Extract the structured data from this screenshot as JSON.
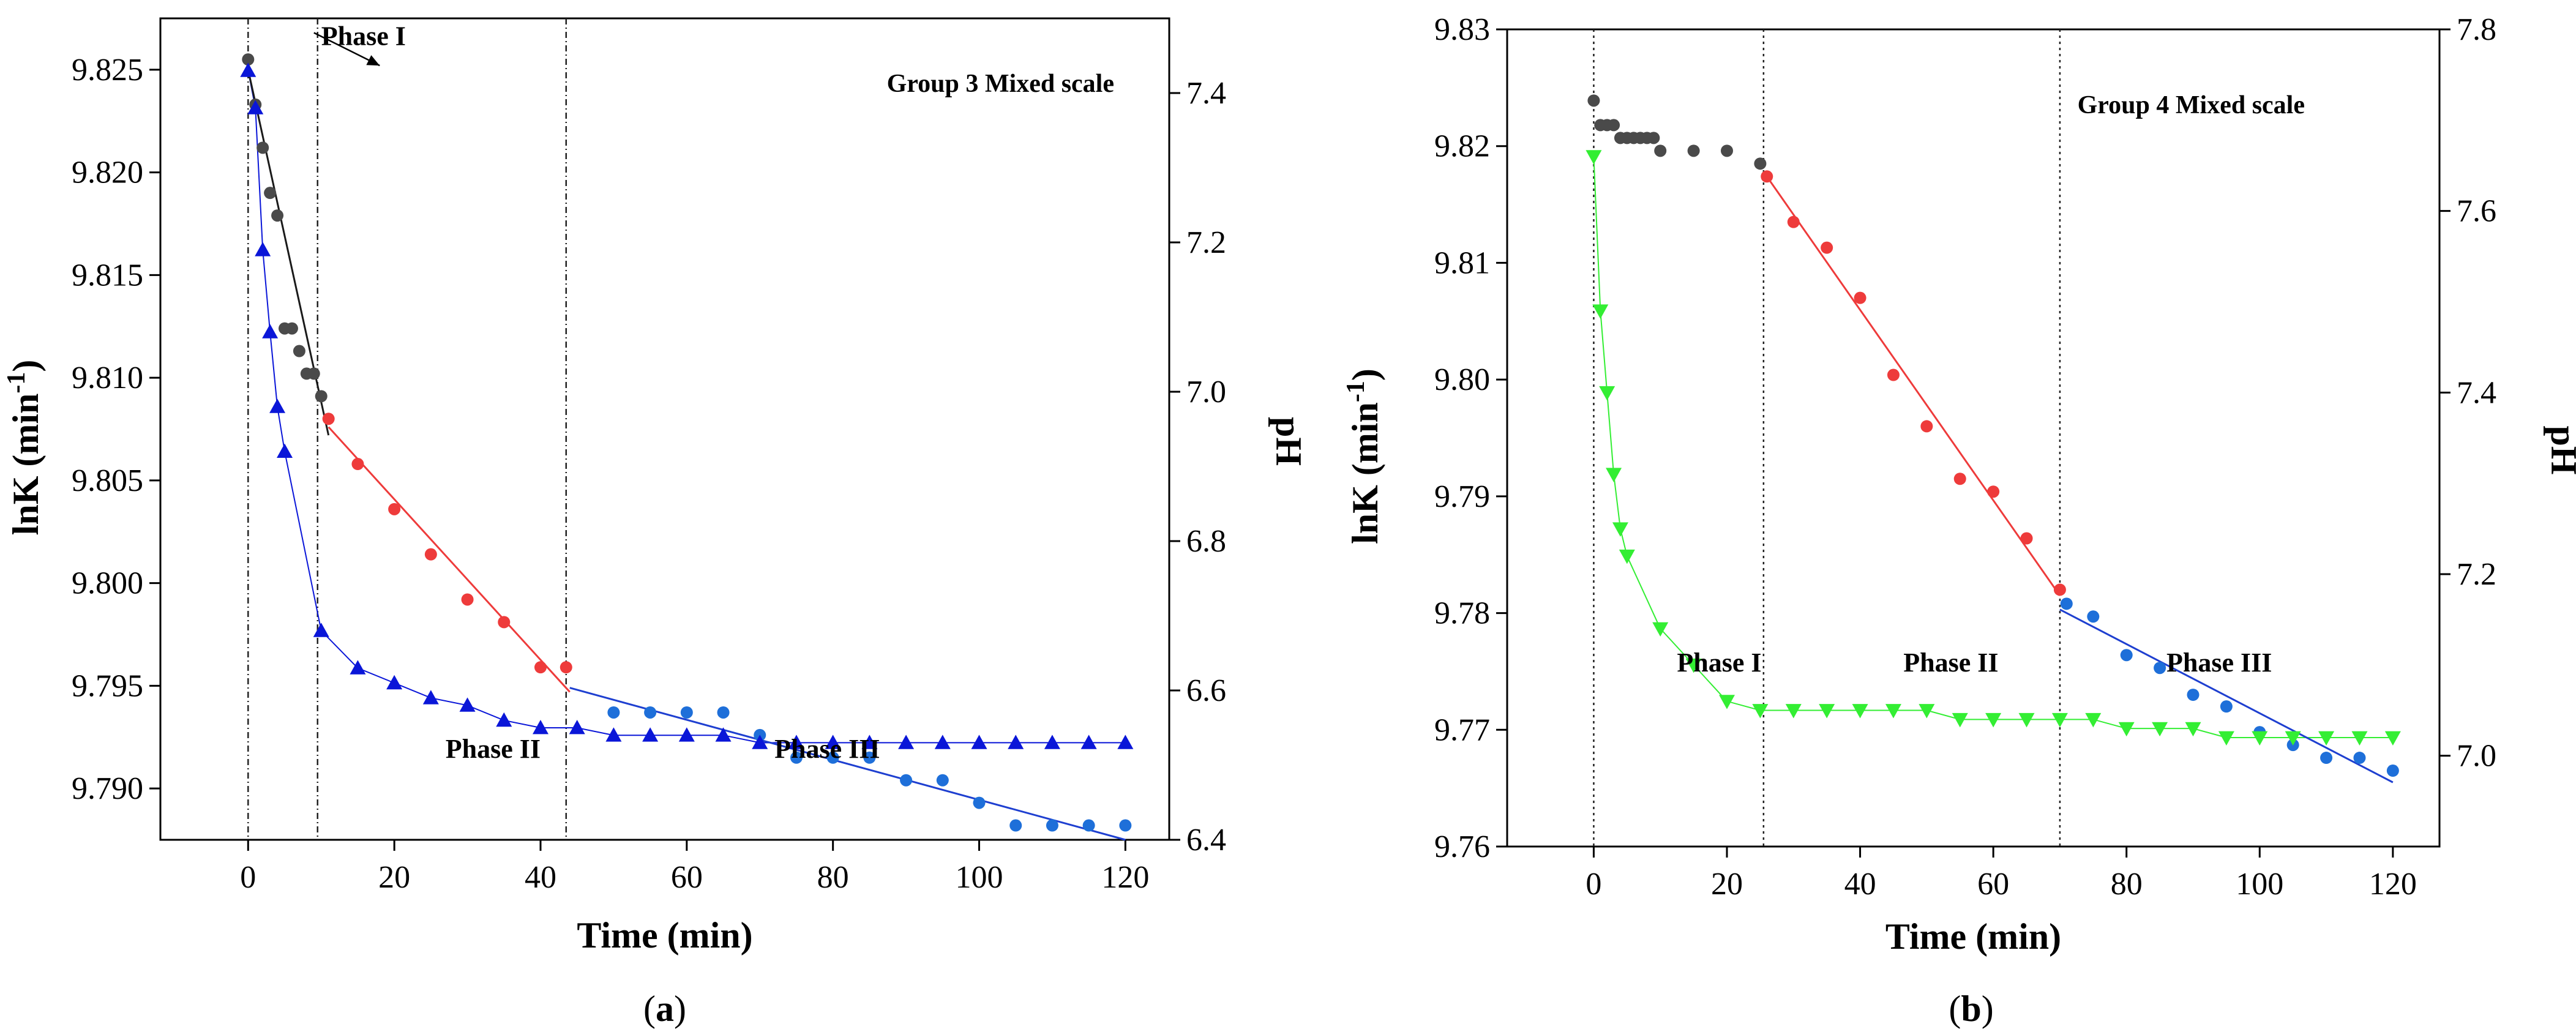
{
  "chart_data": [
    {
      "type": "scatter",
      "panel_label": "(a)",
      "panel_label_letter": "a",
      "title": "Group 3 Mixed scale",
      "xlabel": "Time (min)",
      "ylabel": "lnK (min",
      "ylabel_sup": "-1",
      "ylabel_close": ")",
      "y2label": "pH",
      "xlim": [
        -12,
        126
      ],
      "ylim": [
        9.7875,
        9.8275
      ],
      "y2lim": [
        6.4,
        7.5
      ],
      "x_ticks": [
        0,
        20,
        40,
        60,
        80,
        100,
        120
      ],
      "y_ticks": [
        9.79,
        9.795,
        9.8,
        9.805,
        9.81,
        9.815,
        9.82,
        9.825
      ],
      "y_tick_labels": [
        "9.790",
        "9.795",
        "9.800",
        "9.805",
        "9.810",
        "9.815",
        "9.820",
        "9.825"
      ],
      "y2_ticks": [
        6.4,
        6.6,
        6.8,
        7.0,
        7.2,
        7.4
      ],
      "y2_tick_labels": [
        "6.4",
        "6.6",
        "6.8",
        "7.0",
        "7.2",
        "7.4"
      ],
      "phase_boundaries": [
        0,
        9.5,
        43.5
      ],
      "series": [
        {
          "name": "lnK phase I",
          "axis": "left",
          "marker": "circle",
          "color": "#4a4a4a",
          "x": [
            0,
            1,
            2,
            3,
            4,
            5,
            6,
            7,
            8,
            9,
            10
          ],
          "y": [
            9.8255,
            9.8233,
            9.8212,
            9.819,
            9.8179,
            9.8124,
            9.8124,
            9.8113,
            9.8102,
            9.8102,
            9.8091
          ]
        },
        {
          "name": "lnK phase II",
          "axis": "left",
          "marker": "circle",
          "color": "#ee3b3b",
          "x": [
            11,
            15,
            20,
            25,
            30,
            35,
            40,
            43.5
          ],
          "y": [
            9.808,
            9.8058,
            9.8036,
            9.8014,
            9.7992,
            9.7981,
            9.7959,
            9.7959
          ]
        },
        {
          "name": "lnK phase III",
          "axis": "left",
          "marker": "circle",
          "color": "#1e6fd9",
          "x": [
            50,
            55,
            60,
            65,
            70,
            75,
            80,
            85,
            90,
            95,
            100,
            105,
            110,
            115,
            120
          ],
          "y": [
            9.7937,
            9.7937,
            9.7937,
            9.7937,
            9.7926,
            9.7915,
            9.7915,
            9.7915,
            9.7904,
            9.7904,
            9.7893,
            9.7882,
            9.7882,
            9.7882,
            9.7882
          ]
        },
        {
          "name": "pH",
          "axis": "right",
          "marker": "triangle-up",
          "color": "#0a16d8",
          "x": [
            0,
            1,
            2,
            3,
            4,
            5,
            10,
            15,
            20,
            25,
            30,
            35,
            40,
            45,
            50,
            55,
            60,
            65,
            70,
            75,
            80,
            85,
            90,
            95,
            100,
            105,
            110,
            115,
            120
          ],
          "y": [
            7.43,
            7.38,
            7.19,
            7.08,
            6.98,
            6.92,
            6.68,
            6.63,
            6.61,
            6.59,
            6.58,
            6.56,
            6.55,
            6.55,
            6.54,
            6.54,
            6.54,
            6.54,
            6.53,
            6.53,
            6.53,
            6.53,
            6.53,
            6.53,
            6.53,
            6.53,
            6.53,
            6.53,
            6.53
          ]
        }
      ],
      "fit_lines": [
        {
          "name": "fit phase I",
          "color": "#1a1a1a",
          "x": [
            0,
            11
          ],
          "y": [
            9.825,
            9.8072
          ]
        },
        {
          "name": "fit phase II",
          "color": "#ee3b3b",
          "x": [
            11,
            44
          ],
          "y": [
            9.8076,
            9.7947
          ]
        },
        {
          "name": "fit phase III",
          "color": "#1e3fd0",
          "x": [
            44,
            120
          ],
          "y": [
            9.7949,
            9.7875
          ]
        }
      ],
      "annotations": [
        {
          "text": "Phase I",
          "x": 10,
          "y": 9.8262,
          "arrow_from": [
            9,
            9.8268
          ],
          "arrow_to": [
            18,
            9.8252
          ]
        },
        {
          "text": "Phase II",
          "x": 27,
          "y": 9.7915
        },
        {
          "text": "Phase III",
          "x": 72,
          "y": 9.7915
        }
      ]
    },
    {
      "type": "scatter",
      "panel_label": "(b)",
      "panel_label_letter": "b",
      "title": "Group 4 Mixed scale",
      "xlabel": "Time (min)",
      "ylabel": "lnK (min",
      "ylabel_sup": "-1",
      "ylabel_close": ")",
      "y2label": "pH",
      "xlim": [
        -13,
        127
      ],
      "ylim": [
        9.76,
        9.83
      ],
      "y2lim": [
        6.9,
        7.8
      ],
      "x_ticks": [
        0,
        20,
        40,
        60,
        80,
        100,
        120
      ],
      "y_ticks": [
        9.76,
        9.77,
        9.78,
        9.79,
        9.8,
        9.81,
        9.82,
        9.83
      ],
      "y_tick_labels": [
        "9.76",
        "9.77",
        "9.78",
        "9.79",
        "9.80",
        "9.81",
        "9.82",
        "9.83"
      ],
      "y2_ticks": [
        7.0,
        7.2,
        7.4,
        7.6,
        7.8
      ],
      "y2_tick_labels": [
        "7.0",
        "7.2",
        "7.4",
        "7.6",
        "7.8"
      ],
      "phase_boundaries": [
        0,
        25.5,
        70
      ],
      "series": [
        {
          "name": "lnK phase I",
          "axis": "left",
          "marker": "circle",
          "color": "#4a4a4a",
          "x": [
            0,
            1,
            2,
            3,
            4,
            5,
            6,
            7,
            8,
            9,
            10,
            15,
            20,
            25
          ],
          "y": [
            9.8239,
            9.8218,
            9.8218,
            9.8218,
            9.8207,
            9.8207,
            9.8207,
            9.8207,
            9.8207,
            9.8207,
            9.8196,
            9.8196,
            9.8196,
            9.8185
          ]
        },
        {
          "name": "lnK phase II",
          "axis": "left",
          "marker": "circle",
          "color": "#ee3b3b",
          "x": [
            26,
            30,
            35,
            40,
            45,
            50,
            55,
            60,
            65,
            70
          ],
          "y": [
            9.8174,
            9.8135,
            9.8113,
            9.807,
            9.8004,
            9.796,
            9.7915,
            9.7904,
            9.7864,
            9.782
          ]
        },
        {
          "name": "lnK phase III",
          "axis": "left",
          "marker": "circle",
          "color": "#1e6fd9",
          "x": [
            71,
            75,
            80,
            85,
            90,
            95,
            100,
            105,
            110,
            115,
            120
          ],
          "y": [
            9.7808,
            9.7797,
            9.7764,
            9.7753,
            9.773,
            9.772,
            9.7698,
            9.7687,
            9.7676,
            9.7676,
            9.7665
          ]
        },
        {
          "name": "pH",
          "axis": "right",
          "marker": "triangle-down",
          "color": "#33ee33",
          "x": [
            0,
            1,
            2,
            3,
            4,
            5,
            10,
            15,
            20,
            25,
            30,
            35,
            40,
            45,
            50,
            55,
            60,
            65,
            70,
            75,
            80,
            85,
            90,
            95,
            100,
            105,
            110,
            115,
            120
          ],
          "y": [
            7.66,
            7.49,
            7.4,
            7.31,
            7.25,
            7.22,
            7.14,
            7.1,
            7.06,
            7.05,
            7.05,
            7.05,
            7.05,
            7.05,
            7.05,
            7.04,
            7.04,
            7.04,
            7.04,
            7.04,
            7.03,
            7.03,
            7.03,
            7.02,
            7.02,
            7.02,
            7.02,
            7.02,
            7.02
          ]
        }
      ],
      "fit_lines": [
        {
          "name": "fit phase II",
          "color": "#ee3b3b",
          "x": [
            25.5,
            70
          ],
          "y": [
            9.8178,
            9.7815
          ]
        },
        {
          "name": "fit phase III",
          "color": "#1e3fd0",
          "x": [
            70,
            120
          ],
          "y": [
            9.7803,
            9.7655
          ]
        }
      ],
      "annotations": [
        {
          "text": "Phase I",
          "x": 12.5,
          "y": 9.775
        },
        {
          "text": "Phase II",
          "x": 46.5,
          "y": 9.775
        },
        {
          "text": "Phase III",
          "x": 86,
          "y": 9.775
        }
      ]
    }
  ]
}
